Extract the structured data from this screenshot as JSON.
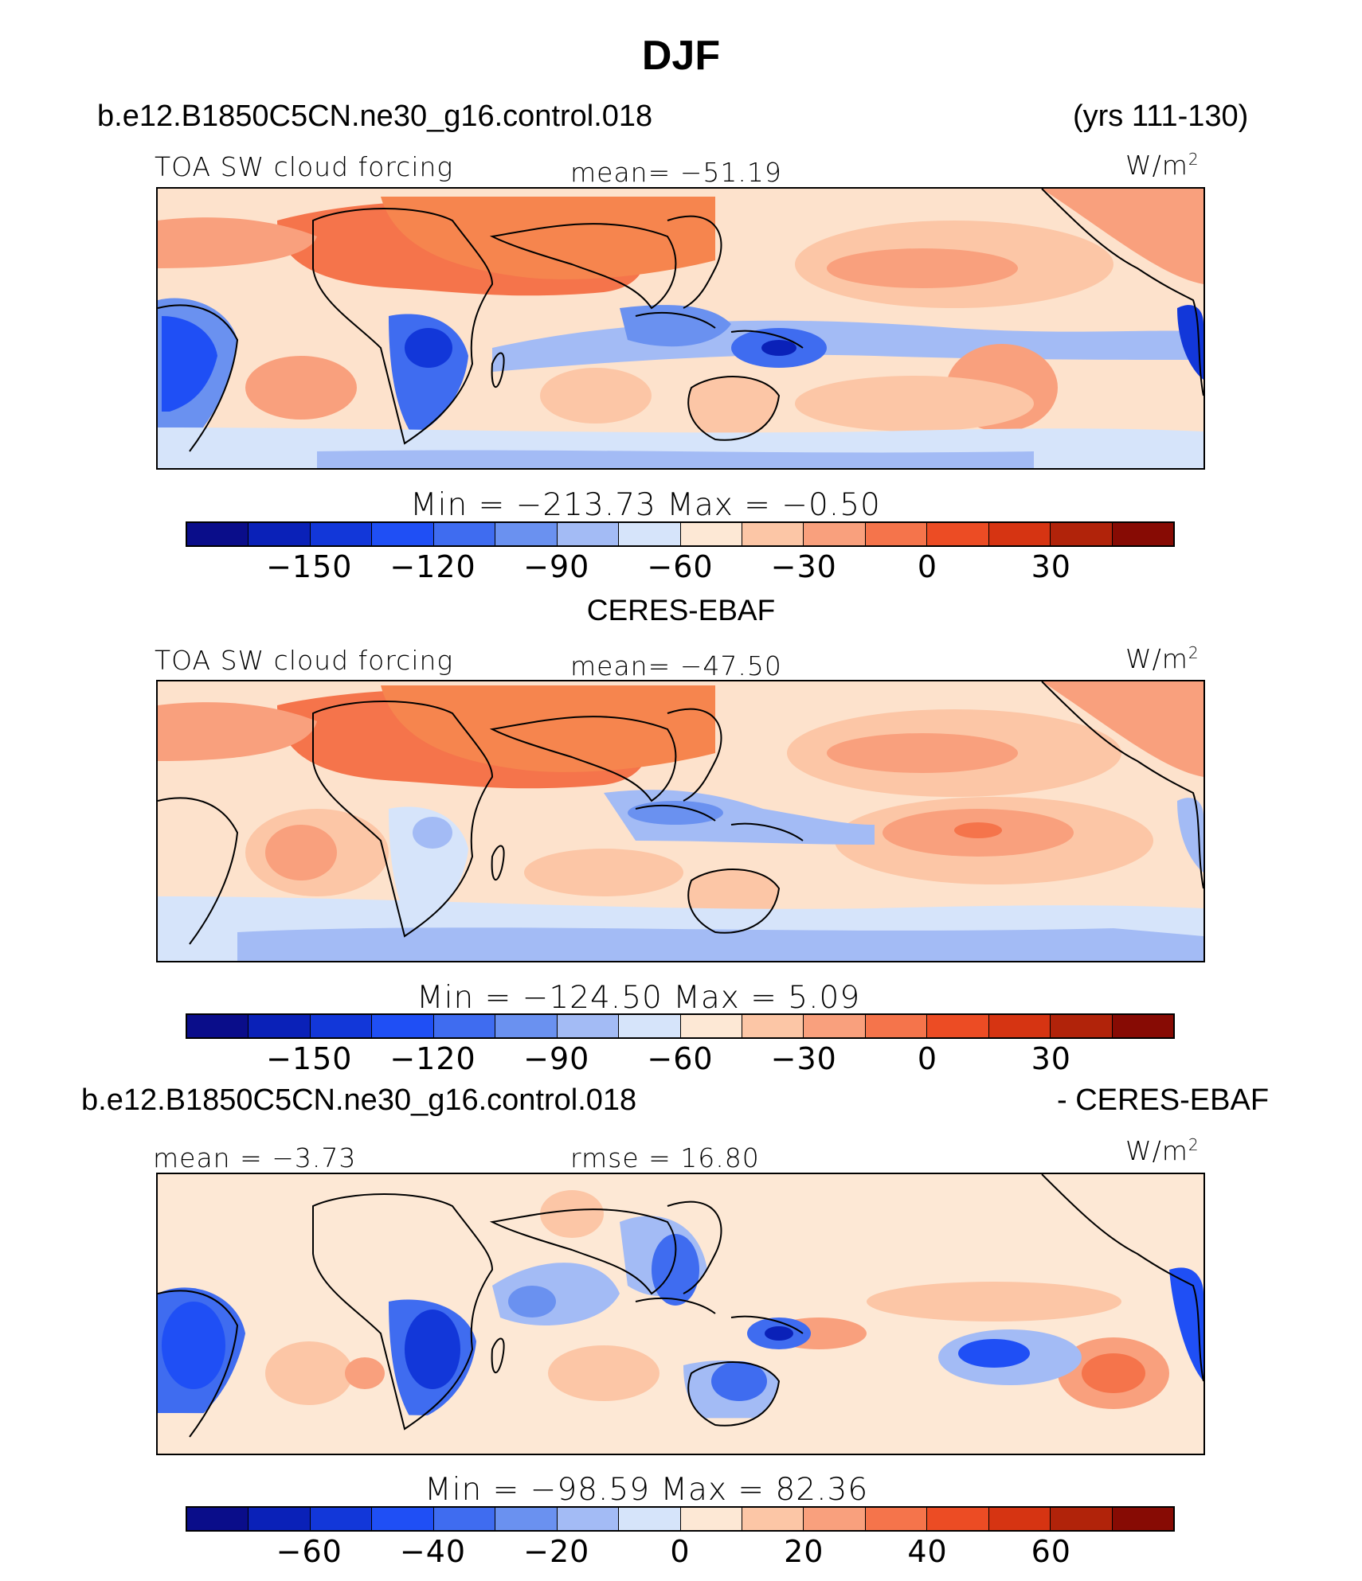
{
  "title": "DJF",
  "panel1": {
    "case": "b.e12.B1850C5CN.ne30_g16.control.018",
    "years": "(yrs 111-130)",
    "variable": "TOA SW cloud forcing",
    "stat": "mean= −51.19",
    "units": "W/m",
    "units_sup": "2",
    "minmax": "Min  =  −213.73  Max  =   −0.50"
  },
  "panel2": {
    "case": "CERES-EBAF",
    "variable": "TOA SW cloud forcing",
    "stat": "mean= −47.50",
    "units": "W/m",
    "units_sup": "2",
    "minmax": "Min  =  −124.50  Max  =     5.09"
  },
  "panel3": {
    "case": "b.e12.B1850C5CN.ne30_g16.control.018",
    "case_suffix": "- CERES-EBAF",
    "mean": "mean  =   −3.73",
    "rmse": "rmse  =   16.80",
    "units": "W/m",
    "units_sup": "2",
    "minmax": "Min  =  −98.59  Max  =   82.36"
  },
  "colorbar_colors": [
    "#0a0d8a",
    "#0a21b8",
    "#1237d9",
    "#1f4ff5",
    "#3f6cf0",
    "#6a91f0",
    "#a3bbf5",
    "#d6e4fa",
    "#fde8d5",
    "#fcc6a6",
    "#f9a07d",
    "#f5744b",
    "#ec4c24",
    "#d63412",
    "#b1230a",
    "#870b04"
  ],
  "chart_data": [
    {
      "type": "heatmap",
      "title": "TOA SW cloud forcing",
      "case": "b.e12.B1850C5CN.ne30_g16.control.018",
      "period": "DJF (yrs 111-130)",
      "units": "W/m2",
      "mean": -51.19,
      "min": -213.73,
      "max": -0.5,
      "colorbar_ticks": [
        "−150",
        "−120",
        "−90",
        "−60",
        "−30",
        "0",
        "30"
      ],
      "colorbar_tick_values": [
        -150,
        -120,
        -90,
        -60,
        -30,
        0,
        30
      ],
      "colorbar_range": [
        -180,
        60
      ]
    },
    {
      "type": "heatmap",
      "title": "TOA SW cloud forcing",
      "case": "CERES-EBAF",
      "units": "W/m2",
      "mean": -47.5,
      "min": -124.5,
      "max": 5.09,
      "colorbar_ticks": [
        "−150",
        "−120",
        "−90",
        "−60",
        "−30",
        "0",
        "30"
      ],
      "colorbar_tick_values": [
        -150,
        -120,
        -90,
        -60,
        -30,
        0,
        30
      ],
      "colorbar_range": [
        -180,
        60
      ]
    },
    {
      "type": "heatmap",
      "title": "b.e12.B1850C5CN.ne30_g16.control.018 - CERES-EBAF",
      "units": "W/m2",
      "mean": -3.73,
      "rmse": 16.8,
      "min": -98.59,
      "max": 82.36,
      "colorbar_ticks": [
        "−60",
        "−40",
        "−20",
        "0",
        "20",
        "40",
        "60"
      ],
      "colorbar_tick_values": [
        -60,
        -40,
        -20,
        0,
        20,
        40,
        60
      ],
      "colorbar_range": [
        -80,
        80
      ]
    }
  ]
}
